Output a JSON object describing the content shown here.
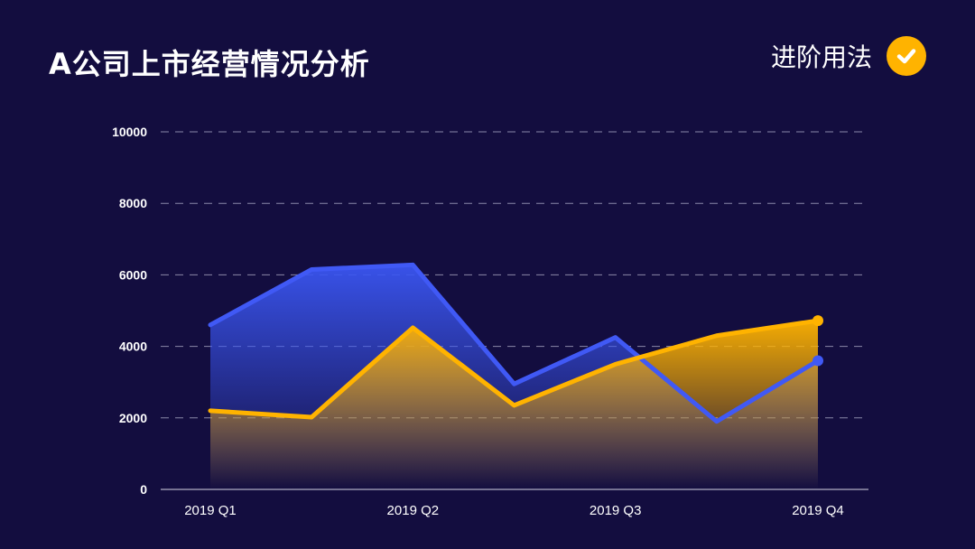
{
  "header": {
    "title": "A公司上市经营情况分析",
    "badge_label": "进阶用法",
    "badge_icon": "check-circle-icon"
  },
  "colors": {
    "background": "#130d3f",
    "blue": "#4059f5",
    "orange": "#ffb300",
    "grid": "#8a88a8"
  },
  "chart_data": {
    "type": "area",
    "x": [
      0,
      1,
      2,
      3,
      4,
      5,
      6
    ],
    "x_tick_labels": [
      "2019 Q1",
      "2019 Q2",
      "2019 Q3",
      "2019 Q4"
    ],
    "x_tick_positions": [
      0,
      2,
      4,
      6
    ],
    "ylim": [
      0,
      10000
    ],
    "yticks": [
      0,
      2000,
      4000,
      6000,
      8000,
      10000
    ],
    "grid": true,
    "series": [
      {
        "color": "#4059f5",
        "values": [
          4600,
          6150,
          6280,
          2950,
          4250,
          1900,
          3600
        ]
      },
      {
        "color": "#ffb300",
        "values": [
          2200,
          2020,
          4520,
          2350,
          3500,
          4300,
          4720
        ]
      }
    ]
  }
}
